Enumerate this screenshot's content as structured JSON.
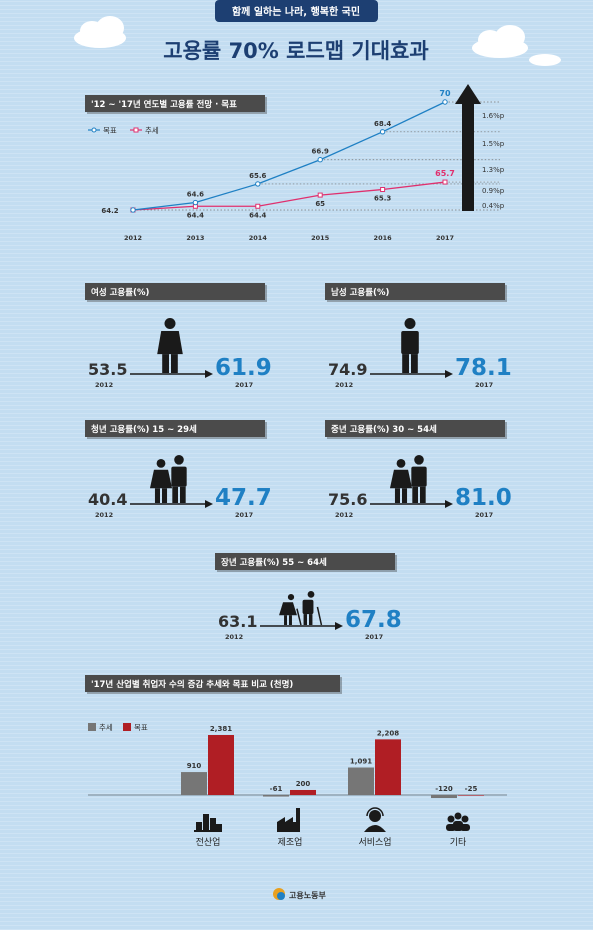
{
  "header": {
    "tagline": "함께 일하는 나라, 행복한 국민",
    "title": "고용률 70% 로드맵 기대효과"
  },
  "chart_data": [
    {
      "type": "line",
      "title": "'12 ~ '17년 연도별 고용률 전망 · 목표",
      "categories": [
        "2012",
        "2013",
        "2014",
        "2015",
        "2016",
        "2017"
      ],
      "series": [
        {
          "name": "목표",
          "color": "#1f80c4",
          "values": [
            64.2,
            64.6,
            65.6,
            66.9,
            68.4,
            70.0
          ]
        },
        {
          "name": "추세",
          "color": "#e0306e",
          "values": [
            64.2,
            64.4,
            64.4,
            65.0,
            65.3,
            65.7
          ]
        }
      ],
      "ylim": [
        64,
        70.5
      ],
      "annotations": [
        "1.6%p",
        "1.5%p",
        "1.3%p",
        "0.9%p",
        "0.4%p"
      ]
    },
    {
      "type": "bar",
      "title": "'17년 산업별 취업자 수의 증감 추세와 목표 비교 (천명)",
      "categories": [
        "전산업",
        "제조업",
        "서비스업",
        "기타"
      ],
      "series": [
        {
          "name": "추세",
          "color": "#767676",
          "values": [
            910,
            -61,
            1091,
            -120
          ],
          "value_labels": [
            "910",
            "-61",
            "1,091",
            "-120"
          ]
        },
        {
          "name": "목표",
          "color": "#b01e24",
          "values": [
            2381,
            200,
            2208,
            -25
          ],
          "value_labels": [
            "2,381",
            "200",
            "2,208",
            "-25"
          ]
        }
      ],
      "ylim": [
        -400,
        2400
      ]
    }
  ],
  "panels": [
    {
      "title": "여성 고용률(%)",
      "start": {
        "value": "53.5",
        "year": "2012"
      },
      "end": {
        "value": "61.9",
        "year": "2017"
      }
    },
    {
      "title": "남성 고용률(%)",
      "start": {
        "value": "74.9",
        "year": "2012"
      },
      "end": {
        "value": "78.1",
        "year": "2017"
      }
    },
    {
      "title": "청년 고용률(%) 15 ~ 29세",
      "start": {
        "value": "40.4",
        "year": "2012"
      },
      "end": {
        "value": "47.7",
        "year": "2017"
      }
    },
    {
      "title": "중년 고용률(%) 30 ~ 54세",
      "start": {
        "value": "75.6",
        "year": "2012"
      },
      "end": {
        "value": "81.0",
        "year": "2017"
      }
    },
    {
      "title": "장년 고용률(%) 55 ~ 64세",
      "start": {
        "value": "63.1",
        "year": "2012"
      },
      "end": {
        "value": "67.8",
        "year": "2017"
      }
    }
  ],
  "footer": {
    "logo": "고용노동부"
  }
}
